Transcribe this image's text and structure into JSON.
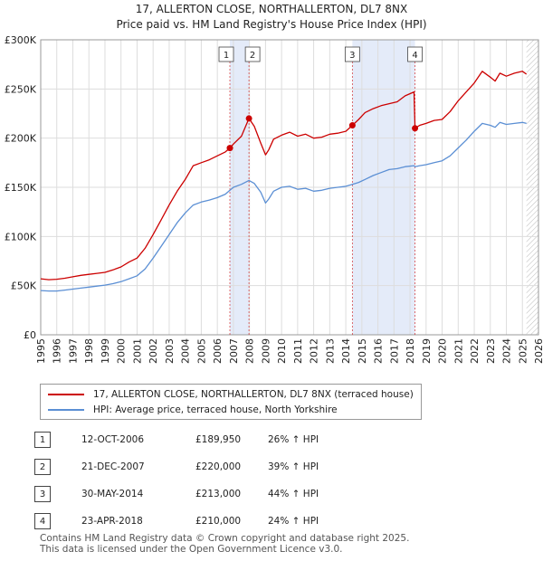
{
  "chart_data": {
    "type": "line",
    "title_line1": "17, ALLERTON CLOSE, NORTHALLERTON, DL7 8NX",
    "title_line2": "Price paid vs. HM Land Registry's House Price Index (HPI)",
    "xlim": [
      1995,
      2026
    ],
    "ylim": [
      0,
      300000
    ],
    "x_ticks": [
      "1995",
      "1996",
      "1997",
      "1998",
      "1999",
      "2000",
      "2001",
      "2002",
      "2003",
      "2004",
      "2005",
      "2006",
      "2007",
      "2008",
      "2009",
      "2010",
      "2011",
      "2012",
      "2013",
      "2014",
      "2015",
      "2016",
      "2017",
      "2018",
      "2019",
      "2020",
      "2021",
      "2022",
      "2023",
      "2024",
      "2025",
      "2026"
    ],
    "y_ticks": [
      {
        "label": "£0",
        "value": 0
      },
      {
        "label": "£50K",
        "value": 50000
      },
      {
        "label": "£100K",
        "value": 100000
      },
      {
        "label": "£150K",
        "value": 150000
      },
      {
        "label": "£200K",
        "value": 200000
      },
      {
        "label": "£250K",
        "value": 250000
      },
      {
        "label": "£300K",
        "value": 300000
      }
    ],
    "grid": true,
    "shaded_ranges": [
      [
        2006.78,
        2007.97
      ],
      [
        2014.41,
        2018.31
      ]
    ],
    "future_hatch_from": 2025.25,
    "series": [
      {
        "name": "17, ALLERTON CLOSE, NORTHALLERTON, DL7 8NX (terraced house)",
        "color": "#cc0000",
        "x": [
          1995.0,
          1995.5,
          1996.0,
          1996.5,
          1997.0,
          1997.5,
          1998.0,
          1998.5,
          1999.0,
          1999.5,
          2000.0,
          2000.5,
          2001.0,
          2001.5,
          2002.0,
          2002.5,
          2003.0,
          2003.5,
          2004.0,
          2004.5,
          2005.0,
          2005.5,
          2006.0,
          2006.5,
          2006.78,
          2007.0,
          2007.5,
          2007.97,
          2008.3,
          2008.7,
          2009.0,
          2009.2,
          2009.5,
          2010.0,
          2010.5,
          2011.0,
          2011.5,
          2012.0,
          2012.5,
          2013.0,
          2013.5,
          2014.0,
          2014.41,
          2014.8,
          2015.2,
          2015.7,
          2016.2,
          2016.7,
          2017.2,
          2017.7,
          2018.25,
          2018.31,
          2018.6,
          2019.0,
          2019.5,
          2020.0,
          2020.5,
          2021.0,
          2021.5,
          2022.0,
          2022.5,
          2023.0,
          2023.3,
          2023.6,
          2024.0,
          2024.5,
          2025.0,
          2025.25
        ],
        "values": [
          57000,
          56000,
          56500,
          57500,
          59000,
          60500,
          61500,
          62500,
          63500,
          66000,
          69000,
          74000,
          78000,
          88000,
          102000,
          117000,
          132000,
          146000,
          158000,
          172000,
          175000,
          178000,
          182000,
          186000,
          189950,
          194000,
          202000,
          220000,
          212000,
          195000,
          183000,
          188000,
          199000,
          203000,
          206000,
          202000,
          204000,
          200000,
          201000,
          204000,
          205000,
          207000,
          213000,
          219000,
          226000,
          230000,
          233000,
          235000,
          237000,
          243000,
          247000,
          210000,
          213000,
          215000,
          218000,
          219000,
          227000,
          238000,
          247000,
          256000,
          268000,
          262000,
          258000,
          266000,
          263000,
          266000,
          268000,
          265000
        ]
      },
      {
        "name": "HPI: Average price, terraced house, North Yorkshire",
        "color": "#5b8fd4",
        "x": [
          1995.0,
          1995.5,
          1996.0,
          1996.5,
          1997.0,
          1997.5,
          1998.0,
          1998.5,
          1999.0,
          1999.5,
          2000.0,
          2000.5,
          2001.0,
          2001.5,
          2002.0,
          2002.5,
          2003.0,
          2003.5,
          2004.0,
          2004.5,
          2005.0,
          2005.5,
          2006.0,
          2006.5,
          2006.78,
          2007.0,
          2007.5,
          2007.97,
          2008.3,
          2008.7,
          2009.0,
          2009.2,
          2009.5,
          2010.0,
          2010.5,
          2011.0,
          2011.5,
          2012.0,
          2012.5,
          2013.0,
          2013.5,
          2014.0,
          2014.41,
          2014.8,
          2015.2,
          2015.7,
          2016.2,
          2016.7,
          2017.2,
          2017.7,
          2018.25,
          2018.31,
          2018.6,
          2019.0,
          2019.5,
          2020.0,
          2020.5,
          2021.0,
          2021.5,
          2022.0,
          2022.5,
          2023.0,
          2023.3,
          2023.6,
          2024.0,
          2024.5,
          2025.0,
          2025.25
        ],
        "values": [
          45000,
          44500,
          44500,
          45500,
          46500,
          47500,
          48500,
          49500,
          50500,
          52000,
          54000,
          57000,
          60000,
          67000,
          78000,
          90000,
          102000,
          114000,
          124000,
          132000,
          135000,
          137000,
          139500,
          143000,
          147000,
          150000,
          153000,
          157000,
          154000,
          145000,
          134000,
          138000,
          146000,
          150000,
          151000,
          148000,
          149000,
          146000,
          147000,
          149000,
          150000,
          151000,
          153000,
          155000,
          158000,
          162000,
          165000,
          168000,
          169000,
          171000,
          172000,
          171000,
          172000,
          173000,
          175000,
          177000,
          182000,
          190000,
          198000,
          207000,
          215000,
          213000,
          211000,
          216000,
          214000,
          215000,
          216000,
          215000
        ]
      }
    ],
    "sales": [
      {
        "num": "1",
        "year": 2006.78,
        "price": 189950
      },
      {
        "num": "2",
        "year": 2007.97,
        "price": 220000
      },
      {
        "num": "3",
        "year": 2014.41,
        "price": 213000
      },
      {
        "num": "4",
        "year": 2018.31,
        "price": 210000
      }
    ]
  },
  "legend": {
    "property": "17, ALLERTON CLOSE, NORTHALLERTON, DL7 8NX (terraced house)",
    "hpi": "HPI: Average price, terraced house, North Yorkshire",
    "property_color": "#cc0000",
    "hpi_color": "#5b8fd4"
  },
  "sales_table": [
    {
      "num": "1",
      "date": "12-OCT-2006",
      "price": "£189,950",
      "hpi": "26% ↑ HPI"
    },
    {
      "num": "2",
      "date": "21-DEC-2007",
      "price": "£220,000",
      "hpi": "39% ↑ HPI"
    },
    {
      "num": "3",
      "date": "30-MAY-2014",
      "price": "£213,000",
      "hpi": "44% ↑ HPI"
    },
    {
      "num": "4",
      "date": "23-APR-2018",
      "price": "£210,000",
      "hpi": "24% ↑ HPI"
    }
  ],
  "footer": {
    "line1": "Contains HM Land Registry data © Crown copyright and database right 2025.",
    "line2": "This data is licensed under the Open Government Licence v3.0."
  }
}
